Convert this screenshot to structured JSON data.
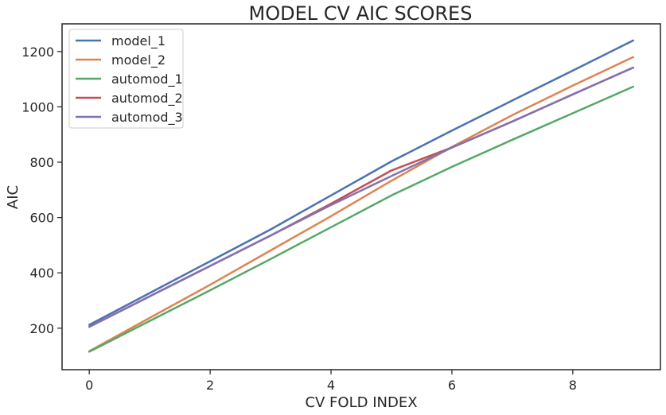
{
  "chart_data": {
    "type": "line",
    "title": "MODEL CV AIC SCORES",
    "xlabel": "CV FOLD INDEX",
    "ylabel": "AIC",
    "xlim": [
      -0.45,
      9.45
    ],
    "ylim": [
      50,
      1300
    ],
    "xticks": [
      0,
      2,
      4,
      6,
      8
    ],
    "yticks": [
      200,
      400,
      600,
      800,
      1000,
      1200
    ],
    "grid": false,
    "legend_position": "top-left",
    "x": [
      0,
      1,
      2,
      3,
      4,
      5,
      6,
      7,
      8,
      9
    ],
    "series": [
      {
        "name": "model_1",
        "color": "#4c72b0",
        "values": [
          212,
          327,
          442,
          557,
          680,
          803,
          914,
          1023,
          1131,
          1240
        ]
      },
      {
        "name": "model_2",
        "color": "#dd8452",
        "values": [
          117,
          237,
          357,
          481,
          605,
          733,
          855,
          970,
          1077,
          1180
        ]
      },
      {
        "name": "automod_1",
        "color": "#55a868",
        "values": [
          115,
          226,
          337,
          450,
          565,
          680,
          783,
          881,
          977,
          1073
        ]
      },
      {
        "name": "automod_2",
        "color": "#c44e52",
        "values": [
          205,
          315,
          425,
          535,
          650,
          770,
          853,
          947,
          1045,
          1142
        ]
      },
      {
        "name": "automod_3",
        "color": "#8172b3",
        "values": [
          205,
          315,
          425,
          535,
          645,
          750,
          853,
          947,
          1045,
          1142
        ]
      }
    ]
  }
}
